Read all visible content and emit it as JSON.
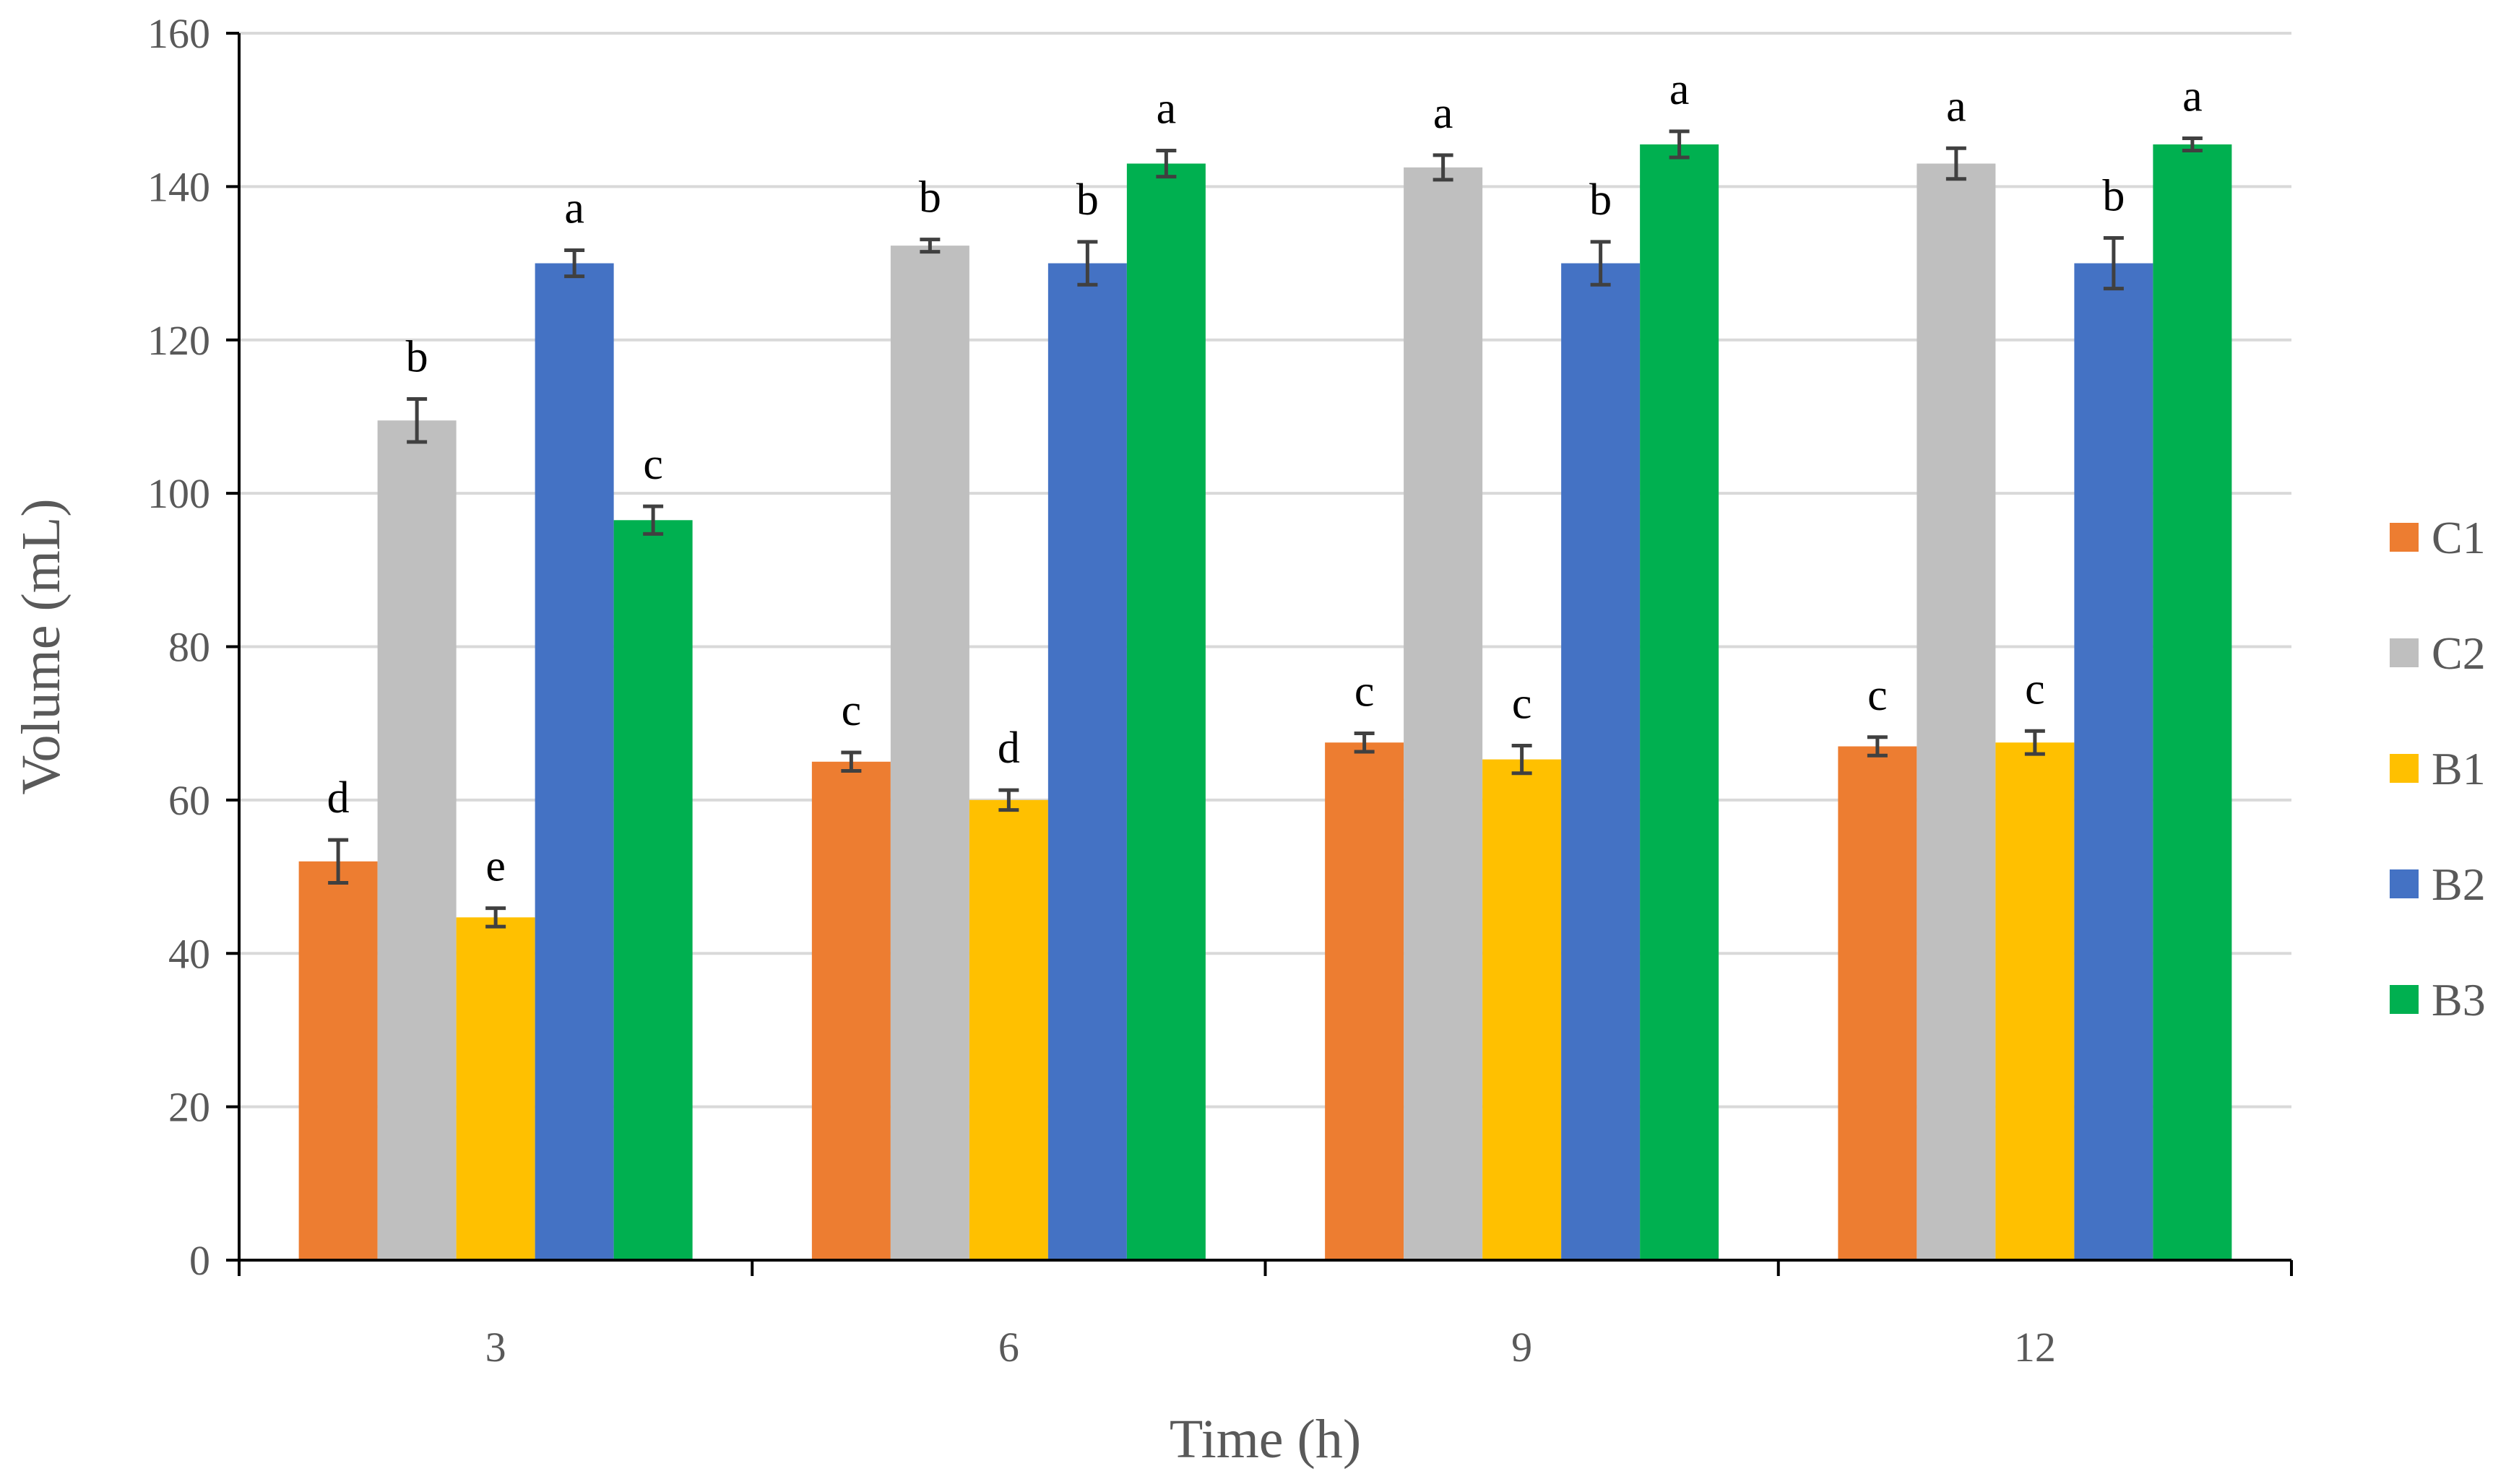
{
  "chart_data": {
    "type": "bar",
    "title": "",
    "xlabel": "Time (h)",
    "ylabel": "Volume (mL)",
    "categories": [
      "3",
      "6",
      "9",
      "12"
    ],
    "ylim": [
      0,
      160
    ],
    "yticks": [
      0,
      20,
      40,
      60,
      80,
      100,
      120,
      140,
      160
    ],
    "grid": true,
    "legend_position": "right",
    "series": [
      {
        "name": "C1",
        "color": "#ED7D31",
        "values": [
          52,
          65,
          67.5,
          67
        ],
        "errors": [
          2.8,
          1.2,
          1.2,
          1.2
        ],
        "labels": [
          "d",
          "c",
          "c",
          "c"
        ]
      },
      {
        "name": "C2",
        "color": "#BFBFBF",
        "values": [
          109.5,
          132.3,
          142.5,
          143
        ],
        "errors": [
          2.8,
          0.8,
          1.6,
          2
        ],
        "labels": [
          "b",
          "b",
          "a",
          "a"
        ]
      },
      {
        "name": "B1",
        "color": "#FFC000",
        "values": [
          44.7,
          60,
          65.3,
          67.5
        ],
        "errors": [
          1.2,
          1.3,
          1.8,
          1.5
        ],
        "labels": [
          "e",
          "d",
          "c",
          "c"
        ]
      },
      {
        "name": "B2",
        "color": "#4472C4",
        "values": [
          130,
          130,
          130,
          130
        ],
        "errors": [
          1.7,
          2.8,
          2.8,
          3.3
        ],
        "labels": [
          "a",
          "b",
          "b",
          "b"
        ]
      },
      {
        "name": "B3",
        "color": "#00B050",
        "values": [
          96.5,
          143,
          145.5,
          145.5
        ],
        "errors": [
          1.8,
          1.7,
          1.7,
          0.8
        ],
        "labels": [
          "c",
          "a",
          "a",
          "a"
        ]
      }
    ]
  }
}
